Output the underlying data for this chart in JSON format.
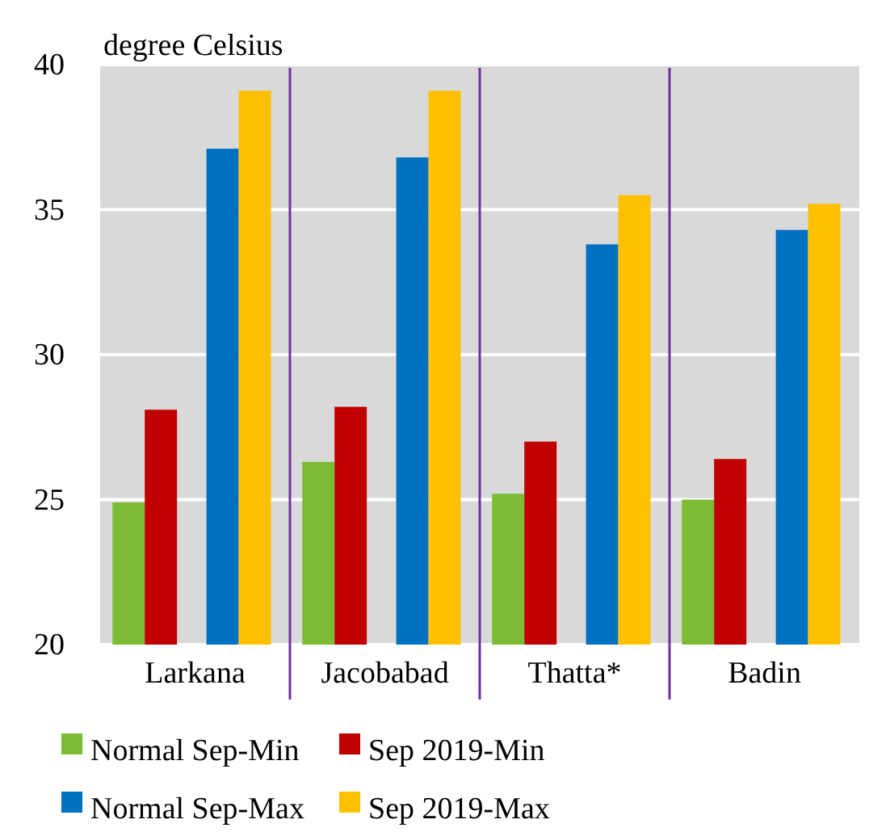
{
  "chart_data": {
    "type": "bar",
    "ylabel": "degree Celsius",
    "categories": [
      "Larkana",
      "Jacobabad",
      "Thatta*",
      "Badin"
    ],
    "series": [
      {
        "name": "Normal Sep-Min",
        "color": "#7cbb34",
        "values": [
          24.9,
          26.3,
          25.2,
          25.0
        ]
      },
      {
        "name": "Sep 2019-Min",
        "color": "#c00000",
        "values": [
          28.1,
          28.2,
          27.0,
          26.4
        ]
      },
      {
        "name": "Normal Sep-Max",
        "color": "#0070c0",
        "values": [
          37.1,
          36.8,
          33.8,
          34.3
        ]
      },
      {
        "name": "Sep 2019-Max",
        "color": "#ffc000",
        "values": [
          39.1,
          39.1,
          35.5,
          35.2
        ]
      }
    ],
    "ylim": [
      20,
      40
    ],
    "yticks": [
      20,
      25,
      30,
      35,
      40
    ],
    "grid": "y",
    "legend": "bottom"
  }
}
